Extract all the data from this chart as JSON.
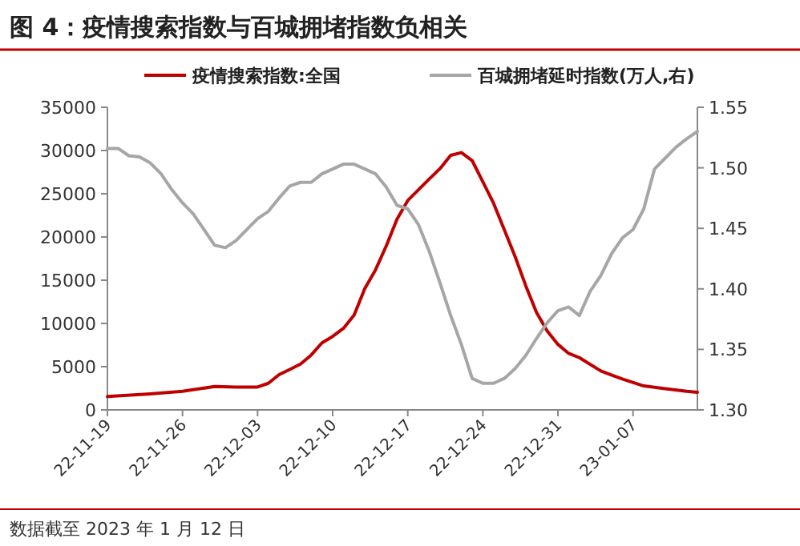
{
  "chart_data": {
    "type": "line",
    "title": "图 4：疫情搜索指数与百城拥堵指数负相关",
    "annotations": [
      "数据截至 2023 年 1 月 12 日"
    ],
    "legend": "top",
    "grid": false,
    "line_style": "solid",
    "xlim": [
      "2022-11-19",
      "2023-01-13"
    ],
    "xticks": [
      {
        "value": "2022-11-19",
        "label": "22-11-19"
      },
      {
        "value": "2022-11-26",
        "label": "22-11-26"
      },
      {
        "value": "2022-12-03",
        "label": "22-12-03"
      },
      {
        "value": "2022-12-10",
        "label": "22-12-10"
      },
      {
        "value": "2022-12-17",
        "label": "22-12-17"
      },
      {
        "value": "2022-12-24",
        "label": "22-12-24"
      },
      {
        "value": "2022-12-31",
        "label": "22-12-31"
      },
      {
        "value": "2023-01-07",
        "label": "23-01-07"
      }
    ],
    "ylim": [
      0,
      35000
    ],
    "yticks": [
      0,
      5000,
      10000,
      15000,
      20000,
      25000,
      30000,
      35000
    ],
    "y2lim": [
      1.3,
      1.55
    ],
    "y2ticks": [
      {
        "value": 1.3,
        "label": "1.30"
      },
      {
        "value": 1.35,
        "label": "1.35"
      },
      {
        "value": 1.4,
        "label": "1.40"
      },
      {
        "value": 1.45,
        "label": "1.45"
      },
      {
        "value": 1.5,
        "label": "1.50"
      },
      {
        "value": 1.55,
        "label": "1.55"
      }
    ],
    "series": [
      {
        "name": "疫情搜索指数:全国",
        "color": "#c00000",
        "x": [
          "2022-11-19",
          "2022-11-23",
          "2022-11-26",
          "2022-11-29",
          "2022-12-01",
          "2022-12-03",
          "2022-12-04",
          "2022-12-05",
          "2022-12-06",
          "2022-12-07",
          "2022-12-08",
          "2022-12-09",
          "2022-12-10",
          "2022-12-11",
          "2022-12-12",
          "2022-12-13",
          "2022-12-14",
          "2022-12-15",
          "2022-12-16",
          "2022-12-17",
          "2022-12-19",
          "2022-12-20",
          "2022-12-21",
          "2022-12-22",
          "2022-12-23",
          "2022-12-24",
          "2022-12-25",
          "2022-12-26",
          "2022-12-27",
          "2022-12-28",
          "2022-12-29",
          "2022-12-30",
          "2022-12-31",
          "2023-01-01",
          "2023-01-02",
          "2023-01-04",
          "2023-01-06",
          "2023-01-08",
          "2023-01-10",
          "2023-01-12",
          "2023-01-13"
        ],
        "values": [
          1540,
          1850,
          2150,
          2700,
          2650,
          2650,
          3080,
          4070,
          4680,
          5300,
          6350,
          7760,
          8500,
          9430,
          10970,
          14050,
          16210,
          18980,
          22060,
          24220,
          26700,
          27900,
          29450,
          29760,
          28840,
          26370,
          23900,
          20830,
          17750,
          14360,
          11280,
          9120,
          7580,
          6530,
          6040,
          4500,
          3570,
          2770,
          2460,
          2150,
          2030
        ]
      },
      {
        "name": "百城拥堵延时指数(万人,右)",
        "color": "#a6a6a6",
        "axis": "y2",
        "x": [
          "2022-11-19",
          "2022-11-20",
          "2022-11-21",
          "2022-11-22",
          "2022-11-23",
          "2022-11-24",
          "2022-11-25",
          "2022-11-26",
          "2022-11-27",
          "2022-11-28",
          "2022-11-29",
          "2022-11-30",
          "2022-12-01",
          "2022-12-02",
          "2022-12-03",
          "2022-12-04",
          "2022-12-05",
          "2022-12-06",
          "2022-12-07",
          "2022-12-08",
          "2022-12-09",
          "2022-12-10",
          "2022-12-11",
          "2022-12-12",
          "2022-12-13",
          "2022-12-14",
          "2022-12-15",
          "2022-12-16",
          "2022-12-17",
          "2022-12-18",
          "2022-12-19",
          "2022-12-20",
          "2022-12-21",
          "2022-12-22",
          "2022-12-23",
          "2022-12-24",
          "2022-12-25",
          "2022-12-26",
          "2022-12-27",
          "2022-12-28",
          "2022-12-29",
          "2022-12-30",
          "2022-12-31",
          "2023-01-01",
          "2023-01-02",
          "2023-01-03",
          "2023-01-04",
          "2023-01-05",
          "2023-01-06",
          "2023-01-07",
          "2023-01-08",
          "2023-01-09",
          "2023-01-10",
          "2023-01-11",
          "2023-01-12",
          "2023-01-13"
        ],
        "values": [
          1.516,
          1.516,
          1.51,
          1.509,
          1.504,
          1.495,
          1.482,
          1.471,
          1.462,
          1.449,
          1.436,
          1.434,
          1.44,
          1.449,
          1.458,
          1.464,
          1.475,
          1.485,
          1.488,
          1.488,
          1.495,
          1.499,
          1.503,
          1.503,
          1.499,
          1.495,
          1.484,
          1.469,
          1.466,
          1.453,
          1.431,
          1.405,
          1.378,
          1.354,
          1.326,
          1.322,
          1.322,
          1.326,
          1.334,
          1.345,
          1.359,
          1.372,
          1.382,
          1.385,
          1.378,
          1.398,
          1.411,
          1.429,
          1.442,
          1.449,
          1.466,
          1.499,
          1.508,
          1.517,
          1.524,
          1.53
        ]
      }
    ]
  }
}
